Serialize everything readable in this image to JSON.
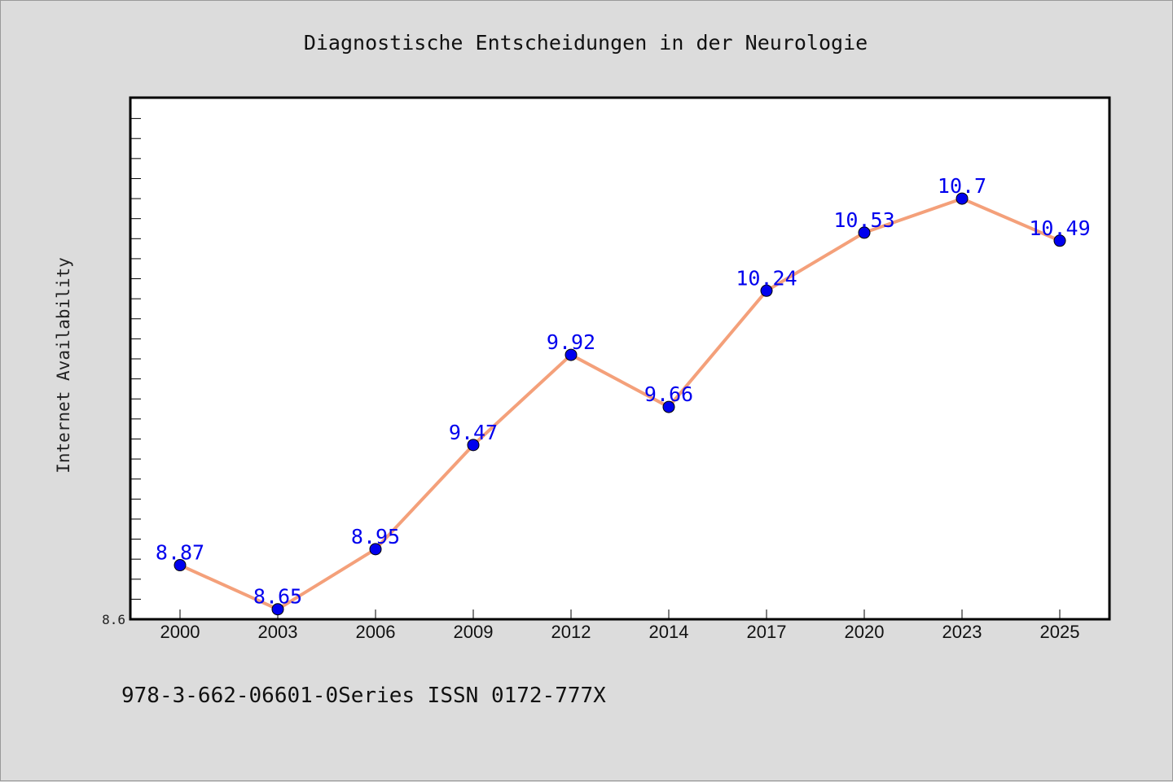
{
  "chart_data": {
    "type": "line",
    "title": "Diagnostische Entscheidungen in der Neurologie",
    "ylabel": "Internet Availability",
    "xlabel": "",
    "categories": [
      "2000",
      "2003",
      "2006",
      "2009",
      "2012",
      "2014",
      "2017",
      "2020",
      "2023",
      "2025"
    ],
    "series": [
      {
        "values": [
          8.87,
          8.65,
          8.95,
          9.47,
          9.92,
          9.66,
          10.24,
          10.53,
          10.7,
          10.49
        ]
      }
    ],
    "data_labels": [
      "8.87",
      "8.65",
      "8.95",
      "9.47",
      "9.92",
      "9.66",
      "10.24",
      "10.53",
      "10.7",
      "10.49"
    ],
    "ylim": [
      8.6,
      11.2
    ],
    "ytick_labels": [
      "8.6"
    ],
    "grid": false,
    "legend": "none",
    "colors": {
      "line": "#f4a07a",
      "marker": "#0000ee",
      "label": "#0000ee",
      "plot_background": "#ffffff",
      "figure_background": "#dcdcdc"
    }
  },
  "footer": {
    "text": "978-3-662-06601-0Series ISSN 0172-777X"
  }
}
